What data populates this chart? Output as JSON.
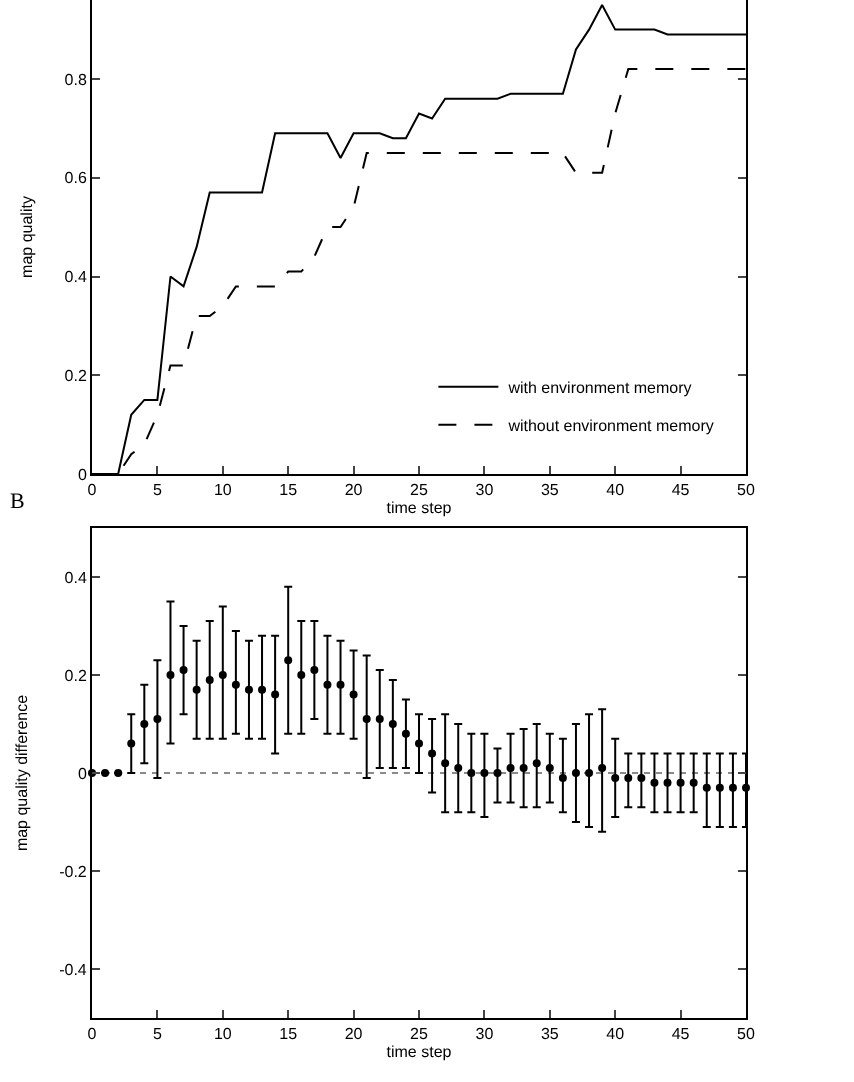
{
  "chart_data": [
    {
      "type": "line",
      "xlabel": "time step",
      "ylabel": "map quality",
      "x": [
        0,
        1,
        2,
        3,
        4,
        5,
        6,
        7,
        8,
        9,
        10,
        11,
        12,
        13,
        14,
        15,
        16,
        17,
        18,
        19,
        20,
        21,
        22,
        23,
        24,
        25,
        26,
        27,
        28,
        29,
        30,
        31,
        32,
        33,
        34,
        35,
        36,
        37,
        38,
        39,
        40,
        41,
        42,
        43,
        44,
        45,
        46,
        47,
        48,
        49,
        50
      ],
      "series": [
        {
          "name": "with environment memory",
          "color": "#000000",
          "line_style": "solid",
          "values": [
            0,
            0,
            0,
            0.12,
            0.15,
            0.15,
            0.4,
            0.38,
            0.46,
            0.57,
            0.57,
            0.57,
            0.57,
            0.57,
            0.69,
            0.69,
            0.69,
            0.69,
            0.69,
            0.64,
            0.69,
            0.69,
            0.69,
            0.68,
            0.68,
            0.73,
            0.72,
            0.76,
            0.76,
            0.76,
            0.76,
            0.76,
            0.77,
            0.77,
            0.77,
            0.77,
            0.77,
            0.86,
            0.9,
            0.95,
            0.9,
            0.9,
            0.9,
            0.9,
            0.89,
            0.89,
            0.89,
            0.89,
            0.89,
            0.89,
            0.89
          ]
        },
        {
          "name": "without environment memory",
          "color": "#000000",
          "line_style": "dashed",
          "values": [
            0,
            0,
            0,
            0.04,
            0.06,
            0.12,
            0.22,
            0.22,
            0.32,
            0.32,
            0.34,
            0.38,
            0.38,
            0.38,
            0.38,
            0.41,
            0.41,
            0.44,
            0.5,
            0.5,
            0.54,
            0.65,
            0.65,
            0.65,
            0.65,
            0.65,
            0.65,
            0.65,
            0.65,
            0.65,
            0.65,
            0.65,
            0.65,
            0.65,
            0.65,
            0.65,
            0.65,
            0.61,
            0.61,
            0.61,
            0.73,
            0.82,
            0.82,
            0.82,
            0.82,
            0.82,
            0.82,
            0.82,
            0.82,
            0.82,
            0.82
          ]
        }
      ],
      "xlim": [
        0,
        50
      ],
      "xticks": [
        0,
        5,
        10,
        15,
        20,
        25,
        30,
        35,
        40,
        45,
        50
      ],
      "ylim": [
        0,
        0.96
      ],
      "yticks": [
        0,
        0.2,
        0.4,
        0.6,
        0.8
      ],
      "marker": "none",
      "grid": false,
      "legend": "bottom right"
    },
    {
      "type": "scatter",
      "xlabel": "time step",
      "ylabel": "map quality difference",
      "annotations": [
        "B"
      ],
      "x": [
        0,
        1,
        2,
        3,
        4,
        5,
        6,
        7,
        8,
        9,
        10,
        11,
        12,
        13,
        14,
        15,
        16,
        17,
        18,
        19,
        20,
        21,
        22,
        23,
        24,
        25,
        26,
        27,
        28,
        29,
        30,
        31,
        32,
        33,
        34,
        35,
        36,
        37,
        38,
        39,
        40,
        41,
        42,
        43,
        44,
        45,
        46,
        47,
        48,
        49,
        50
      ],
      "values": [
        0,
        0,
        0,
        0.06,
        0.1,
        0.11,
        0.2,
        0.21,
        0.17,
        0.19,
        0.2,
        0.18,
        0.17,
        0.17,
        0.16,
        0.23,
        0.2,
        0.21,
        0.18,
        0.18,
        0.16,
        0.11,
        0.11,
        0.1,
        0.08,
        0.06,
        0.04,
        0.02,
        0.01,
        0,
        0,
        0,
        0.01,
        0.01,
        0.02,
        0.01,
        -0.01,
        0,
        0,
        0.01,
        -0.01,
        -0.01,
        -0.01,
        -0.02,
        -0.02,
        -0.02,
        -0.02,
        -0.03,
        -0.03,
        -0.03,
        -0.03
      ],
      "errors": [
        null,
        null,
        null,
        [
          0,
          0.12
        ],
        [
          0.02,
          0.18
        ],
        [
          -0.01,
          0.23
        ],
        [
          0.06,
          0.35
        ],
        [
          0.12,
          0.3
        ],
        [
          0.07,
          0.27
        ],
        [
          0.07,
          0.31
        ],
        [
          0.07,
          0.34
        ],
        [
          0.08,
          0.29
        ],
        [
          0.07,
          0.27
        ],
        [
          0.07,
          0.28
        ],
        [
          0.04,
          0.28
        ],
        [
          0.08,
          0.38
        ],
        [
          0.08,
          0.31
        ],
        [
          0.11,
          0.31
        ],
        [
          0.08,
          0.28
        ],
        [
          0.08,
          0.27
        ],
        [
          0.07,
          0.25
        ],
        [
          -0.01,
          0.24
        ],
        [
          0.01,
          0.21
        ],
        [
          0.01,
          0.19
        ],
        [
          0.01,
          0.15
        ],
        [
          0,
          0.12
        ],
        [
          -0.04,
          0.11
        ],
        [
          -0.08,
          0.12
        ],
        [
          -0.08,
          0.1
        ],
        [
          -0.08,
          0.08
        ],
        [
          -0.09,
          0.08
        ],
        [
          -0.06,
          0.05
        ],
        [
          -0.06,
          0.08
        ],
        [
          -0.07,
          0.09
        ],
        [
          -0.07,
          0.1
        ],
        [
          -0.06,
          0.08
        ],
        [
          -0.08,
          0.07
        ],
        [
          -0.1,
          0.1
        ],
        [
          -0.11,
          0.12
        ],
        [
          -0.12,
          0.13
        ],
        [
          -0.09,
          0.07
        ],
        [
          -0.07,
          0.04
        ],
        [
          -0.07,
          0.04
        ],
        [
          -0.08,
          0.04
        ],
        [
          -0.08,
          0.04
        ],
        [
          -0.08,
          0.04
        ],
        [
          -0.08,
          0.04
        ],
        [
          -0.11,
          0.04
        ],
        [
          -0.11,
          0.04
        ],
        [
          -0.11,
          0.04
        ],
        [
          -0.11,
          0.04
        ]
      ],
      "color": "#000000",
      "marker": "circle",
      "ref_lines": [
        {
          "axis": "y",
          "value": 0,
          "line_style": "dotted",
          "color": "#666666"
        }
      ],
      "xlim": [
        0,
        50
      ],
      "xticks": [
        0,
        5,
        10,
        15,
        20,
        25,
        30,
        35,
        40,
        45,
        50
      ],
      "ylim": [
        -0.5,
        0.5
      ],
      "yticks": [
        -0.4,
        -0.2,
        0,
        0.2,
        0.4
      ],
      "grid": false,
      "legend": false
    }
  ]
}
